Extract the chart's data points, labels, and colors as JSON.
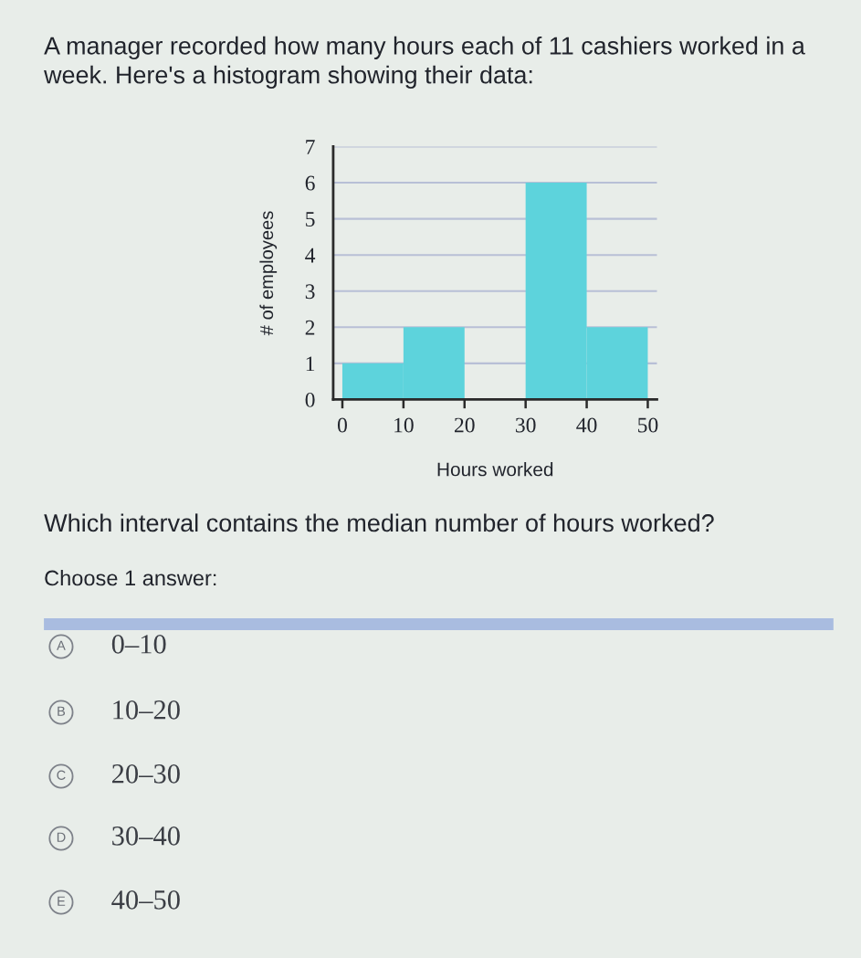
{
  "chart_data": {
    "type": "histogram",
    "title": "A manager recorded how many hours each of 11 cashiers worked in a week. Here's a histogram showing their data:",
    "xlabel": "Hours worked",
    "ylabel": "# of employees",
    "bins": [
      0,
      10,
      20,
      30,
      40,
      50
    ],
    "values": [
      1,
      2,
      0,
      6,
      2
    ],
    "color": "#5dd3dc",
    "xlim": [
      -1.5,
      51.5
    ],
    "ylim": [
      0,
      7
    ],
    "xticks": [
      0,
      10,
      20,
      30,
      40,
      50
    ],
    "yticks": [
      0,
      1,
      2,
      3,
      4,
      5,
      6,
      7
    ],
    "grid": "y",
    "annotations": [
      "Which interval contains the median number of hours worked?",
      "Choose 1 answer:",
      "A",
      "0–10",
      "B",
      "10–20",
      "C",
      "20–30",
      "D",
      "30–40",
      "E",
      "40–50"
    ]
  }
}
